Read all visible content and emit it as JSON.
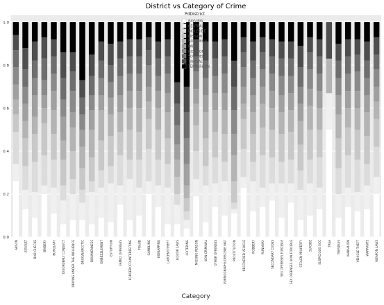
{
  "chart_data": {
    "type": "bar",
    "stacked": "percent",
    "title": "District vs Category of Crime",
    "xlabel": "Category",
    "ylabel": "",
    "ylim": [
      0,
      1
    ],
    "yticks": [
      "0.0",
      "0.2",
      "0.4",
      "0.6",
      "0.8",
      "1.0"
    ],
    "legend_title": "PdDistrict",
    "legend_position": "top-center",
    "legend_entries": [
      "BAYVIEW",
      "CENTRAL",
      "INGLESIDE",
      "MISSION",
      "NORTHERN",
      "PARK",
      "RICHMOND",
      "SOUTHERN",
      "TARAVAL",
      "TENDERLOIN"
    ],
    "series_colors": [
      "#ffffff",
      "#f0f0f0",
      "#dcdcdc",
      "#c8c8c8",
      "#b4b4b4",
      "#a0a0a0",
      "#8a8a8a",
      "#6e6e6e",
      "#4e4e4e",
      "#000000"
    ],
    "grid": true,
    "categories": [
      "ARSON",
      "ASSAULT",
      "BAD CHECKS",
      "BRIBERY",
      "BURGLARY",
      "DISORDERLY CONDUCT",
      "DRIVING UNDER THE INFLUENCE",
      "DRUG/NARCOTIC",
      "DRUNKENNESS",
      "EMBEZZLEMENT",
      "EXTORTION",
      "FAMILY OFFENSES",
      "FORGERY/COUNTERFEITING",
      "FRAUD",
      "GAMBLING",
      "KIDNAPPING",
      "LARCENY/THEFT",
      "LIQUOR LAWS",
      "LOITERING",
      "MISSING PERSON",
      "NON-CRIMINAL",
      "OTHER OFFENSES",
      "PORNOGRAPHY/OBSCENE MAT",
      "PROSTITUTION",
      "RECOVERED VEHICLE",
      "ROBBERY",
      "RUNAWAY",
      "SECONDARY CODES",
      "SEX OFFENSES FORCIBLE",
      "SEX OFFENSES NON FORCIBLE",
      "STOLEN PROPERTY",
      "SUICIDE",
      "SUSPICIOUS OCC",
      "TREA",
      "TRESPASS",
      "VANDALISM",
      "VEHICLE THEFT",
      "WARRANTS",
      "WEAPON LAWS"
    ],
    "cumulative_tops": [
      [
        0.26,
        0.34,
        0.49,
        0.57,
        0.64,
        0.71,
        0.79,
        0.87,
        0.94,
        1.0
      ],
      [
        0.13,
        0.22,
        0.33,
        0.46,
        0.54,
        0.62,
        0.7,
        0.78,
        0.88,
        1.0
      ],
      [
        0.09,
        0.21,
        0.35,
        0.48,
        0.56,
        0.66,
        0.74,
        0.82,
        0.91,
        1.0
      ],
      [
        0.2,
        0.24,
        0.38,
        0.53,
        0.6,
        0.66,
        0.73,
        0.83,
        0.93,
        1.0
      ],
      [
        0.11,
        0.23,
        0.36,
        0.48,
        0.59,
        0.68,
        0.76,
        0.84,
        0.92,
        1.0
      ],
      [
        0.06,
        0.17,
        0.24,
        0.36,
        0.45,
        0.56,
        0.64,
        0.74,
        0.86,
        1.0
      ],
      [
        0.08,
        0.2,
        0.27,
        0.4,
        0.51,
        0.58,
        0.68,
        0.77,
        0.86,
        1.0
      ],
      [
        0.08,
        0.16,
        0.22,
        0.32,
        0.42,
        0.5,
        0.57,
        0.65,
        0.73,
        1.0
      ],
      [
        0.06,
        0.21,
        0.26,
        0.37,
        0.5,
        0.59,
        0.66,
        0.75,
        0.85,
        1.0
      ],
      [
        0.09,
        0.23,
        0.31,
        0.45,
        0.59,
        0.66,
        0.74,
        0.82,
        0.91,
        1.0
      ],
      [
        0.07,
        0.25,
        0.33,
        0.47,
        0.57,
        0.65,
        0.72,
        0.8,
        0.9,
        1.0
      ],
      [
        0.15,
        0.24,
        0.38,
        0.49,
        0.58,
        0.66,
        0.75,
        0.83,
        0.91,
        1.0
      ],
      [
        0.08,
        0.27,
        0.36,
        0.5,
        0.6,
        0.68,
        0.76,
        0.84,
        0.92,
        1.0
      ],
      [
        0.1,
        0.23,
        0.36,
        0.49,
        0.6,
        0.68,
        0.76,
        0.84,
        0.92,
        1.0
      ],
      [
        0.2,
        0.26,
        0.41,
        0.55,
        0.63,
        0.7,
        0.8,
        0.87,
        0.93,
        1.0
      ],
      [
        0.14,
        0.24,
        0.36,
        0.5,
        0.6,
        0.68,
        0.75,
        0.83,
        0.91,
        1.0
      ],
      [
        0.06,
        0.23,
        0.34,
        0.46,
        0.58,
        0.67,
        0.76,
        0.84,
        0.92,
        1.0
      ],
      [
        0.06,
        0.15,
        0.2,
        0.28,
        0.36,
        0.43,
        0.52,
        0.62,
        0.72,
        1.0
      ],
      [
        0.04,
        0.08,
        0.12,
        0.18,
        0.24,
        0.34,
        0.46,
        0.58,
        0.7,
        1.0
      ],
      [
        0.19,
        0.27,
        0.4,
        0.52,
        0.62,
        0.69,
        0.77,
        0.84,
        0.92,
        1.0
      ],
      [
        0.07,
        0.24,
        0.33,
        0.46,
        0.58,
        0.66,
        0.74,
        0.82,
        0.91,
        1.0
      ],
      [
        0.14,
        0.25,
        0.37,
        0.49,
        0.59,
        0.67,
        0.75,
        0.83,
        0.91,
        1.0
      ],
      [
        0.1,
        0.26,
        0.35,
        0.48,
        0.59,
        0.67,
        0.76,
        0.84,
        0.92,
        1.0
      ],
      [
        0.11,
        0.13,
        0.16,
        0.26,
        0.38,
        0.48,
        0.59,
        0.7,
        0.82,
        1.0
      ],
      [
        0.23,
        0.28,
        0.41,
        0.55,
        0.62,
        0.7,
        0.79,
        0.86,
        0.93,
        1.0
      ],
      [
        0.12,
        0.26,
        0.35,
        0.48,
        0.58,
        0.66,
        0.74,
        0.82,
        0.91,
        1.0
      ],
      [
        0.14,
        0.23,
        0.38,
        0.51,
        0.62,
        0.7,
        0.78,
        0.86,
        0.93,
        1.0
      ],
      [
        0.17,
        0.25,
        0.37,
        0.5,
        0.6,
        0.68,
        0.76,
        0.84,
        0.92,
        1.0
      ],
      [
        0.09,
        0.25,
        0.35,
        0.48,
        0.58,
        0.66,
        0.75,
        0.83,
        0.91,
        1.0
      ],
      [
        0.16,
        0.25,
        0.36,
        0.49,
        0.59,
        0.67,
        0.75,
        0.83,
        0.91,
        1.0
      ],
      [
        0.08,
        0.22,
        0.31,
        0.43,
        0.54,
        0.62,
        0.7,
        0.79,
        0.89,
        1.0
      ],
      [
        0.1,
        0.25,
        0.36,
        0.5,
        0.61,
        0.69,
        0.78,
        0.86,
        0.93,
        1.0
      ],
      [
        0.13,
        0.23,
        0.37,
        0.5,
        0.6,
        0.68,
        0.76,
        0.84,
        0.92,
        1.0
      ],
      [
        0.5,
        0.67,
        0.67,
        0.67,
        0.83,
        0.83,
        0.83,
        0.83,
        1.0,
        1.0
      ],
      [
        0.09,
        0.2,
        0.32,
        0.46,
        0.57,
        0.66,
        0.74,
        0.82,
        0.9,
        1.0
      ],
      [
        0.14,
        0.23,
        0.38,
        0.51,
        0.6,
        0.68,
        0.76,
        0.84,
        0.92,
        1.0
      ],
      [
        0.12,
        0.21,
        0.36,
        0.5,
        0.6,
        0.68,
        0.77,
        0.85,
        0.92,
        1.0
      ],
      [
        0.13,
        0.24,
        0.34,
        0.47,
        0.58,
        0.66,
        0.74,
        0.82,
        0.91,
        1.0
      ],
      [
        0.2,
        0.28,
        0.42,
        0.55,
        0.63,
        0.7,
        0.78,
        0.85,
        0.93,
        1.0
      ]
    ]
  }
}
